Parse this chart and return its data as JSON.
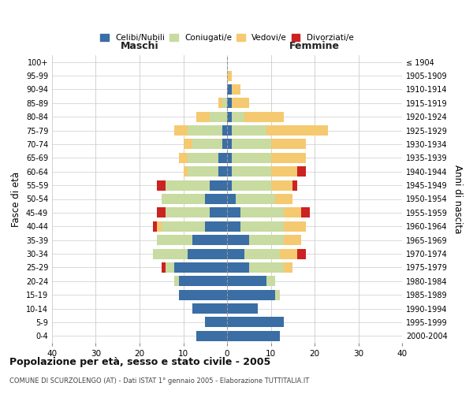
{
  "age_groups": [
    "0-4",
    "5-9",
    "10-14",
    "15-19",
    "20-24",
    "25-29",
    "30-34",
    "35-39",
    "40-44",
    "45-49",
    "50-54",
    "55-59",
    "60-64",
    "65-69",
    "70-74",
    "75-79",
    "80-84",
    "85-89",
    "90-94",
    "95-99",
    "100+"
  ],
  "birth_years": [
    "2000-2004",
    "1995-1999",
    "1990-1994",
    "1985-1989",
    "1980-1984",
    "1975-1979",
    "1970-1974",
    "1965-1969",
    "1960-1964",
    "1955-1959",
    "1950-1954",
    "1945-1949",
    "1940-1944",
    "1935-1939",
    "1930-1934",
    "1925-1929",
    "1920-1924",
    "1915-1919",
    "1910-1914",
    "1905-1909",
    "≤ 1904"
  ],
  "maschi": {
    "celibi": [
      7,
      5,
      8,
      11,
      11,
      12,
      9,
      8,
      5,
      4,
      5,
      4,
      2,
      2,
      1,
      1,
      0,
      0,
      0,
      0,
      0
    ],
    "coniugati": [
      0,
      0,
      0,
      0,
      1,
      2,
      8,
      8,
      10,
      10,
      10,
      10,
      7,
      7,
      7,
      8,
      4,
      1,
      0,
      0,
      0
    ],
    "vedovi": [
      0,
      0,
      0,
      0,
      0,
      0,
      0,
      0,
      1,
      0,
      0,
      0,
      1,
      2,
      2,
      3,
      3,
      1,
      0,
      0,
      0
    ],
    "divorziati": [
      0,
      0,
      0,
      0,
      0,
      1,
      0,
      0,
      1,
      2,
      0,
      2,
      0,
      0,
      0,
      0,
      0,
      0,
      0,
      0,
      0
    ]
  },
  "femmine": {
    "nubili": [
      12,
      13,
      7,
      11,
      9,
      5,
      4,
      5,
      3,
      3,
      2,
      1,
      1,
      1,
      1,
      1,
      1,
      1,
      1,
      0,
      0
    ],
    "coniugate": [
      0,
      0,
      0,
      1,
      2,
      8,
      8,
      8,
      10,
      10,
      9,
      9,
      9,
      9,
      9,
      8,
      3,
      0,
      0,
      0,
      0
    ],
    "vedove": [
      0,
      0,
      0,
      0,
      0,
      2,
      4,
      4,
      5,
      4,
      4,
      5,
      6,
      8,
      8,
      14,
      9,
      4,
      2,
      1,
      0
    ],
    "divorziate": [
      0,
      0,
      0,
      0,
      0,
      0,
      2,
      0,
      0,
      2,
      0,
      1,
      2,
      0,
      0,
      0,
      0,
      0,
      0,
      0,
      0
    ]
  },
  "colors": {
    "celibi": "#3A6EA5",
    "coniugati": "#C8DBA0",
    "vedovi": "#F5C970",
    "divorziati": "#CC2222"
  },
  "legend_labels": [
    "Celibi/Nubili",
    "Coniugati/e",
    "Vedovi/e",
    "Divorziati/e"
  ],
  "title": "Popolazione per età, sesso e stato civile - 2005",
  "subtitle": "COMUNE DI SCURZOLENGO (AT) - Dati ISTAT 1° gennaio 2005 - Elaborazione TUTTITALIA.IT",
  "ylabel_left": "Fasce di età",
  "ylabel_right": "Anni di nascita",
  "xlabel_maschi": "Maschi",
  "xlabel_femmine": "Femmine",
  "xlim": 40,
  "bg_color": "#FFFFFF",
  "grid_color": "#CCCCCC"
}
